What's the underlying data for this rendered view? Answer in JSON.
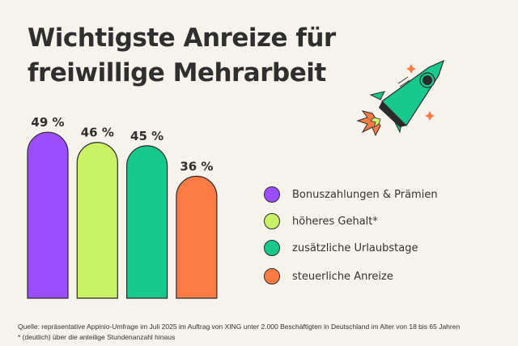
{
  "title": [
    "Wichtigste Anreize für",
    "freiwillige Mehrarbeit"
  ],
  "chart_data": {
    "type": "bar",
    "categories": [
      "Bonuszahlungen & Prämien",
      "höheres Gehalt*",
      "zusätzliche Urlaubstage",
      "steuerliche Anreize"
    ],
    "values": [
      49,
      46,
      45,
      36
    ],
    "data_labels": [
      "49 %",
      "46 %",
      "45 %",
      "36 %"
    ],
    "colors": [
      "#9b4dff",
      "#c9f266",
      "#17c98c",
      "#ff7b45"
    ],
    "ylim": [
      0,
      50
    ],
    "grid": false,
    "legend_placement": "right"
  },
  "footnotes": {
    "source": "Quelle: repräsentative Appinio-Umfrage im Juli 2025 im Auftrag von XING unter 2.000 Beschäftigten in Deutschland im Alter von 18 bis 65 Jahren",
    "note": "* (deutlich) über die anteilige Stundenanzahl hinaus"
  },
  "illustration": "rocket-icon"
}
